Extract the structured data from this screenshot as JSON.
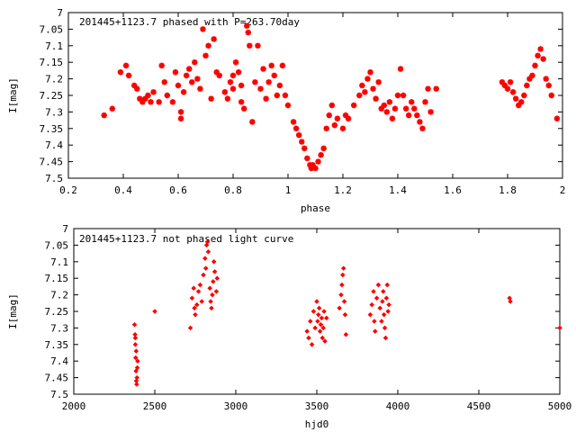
{
  "chart_data": [
    {
      "type": "scatter",
      "title": "201445+1123.7 phased with P=263.70day",
      "xlabel": "phase",
      "ylabel": "I[mag]",
      "xlim": [
        0.2,
        2.0
      ],
      "ylim": [
        7.5,
        7.0
      ],
      "y_inverted": true,
      "grid": false,
      "marker": "star",
      "color": "#ff0000",
      "x_ticks": [
        "0.2",
        "0.4",
        "0.6",
        "0.8",
        "1",
        "1.2",
        "1.4",
        "1.6",
        "1.8",
        "2"
      ],
      "y_ticks": [
        "7",
        "7.05",
        "7.1",
        "7.15",
        "7.2",
        "7.25",
        "7.3",
        "7.35",
        "7.4",
        "7.45",
        "7.5"
      ],
      "points": [
        [
          0.33,
          7.31
        ],
        [
          0.36,
          7.29
        ],
        [
          0.39,
          7.18
        ],
        [
          0.41,
          7.16
        ],
        [
          0.42,
          7.19
        ],
        [
          0.44,
          7.22
        ],
        [
          0.45,
          7.23
        ],
        [
          0.46,
          7.26
        ],
        [
          0.47,
          7.27
        ],
        [
          0.48,
          7.26
        ],
        [
          0.49,
          7.25
        ],
        [
          0.5,
          7.27
        ],
        [
          0.51,
          7.24
        ],
        [
          0.53,
          7.27
        ],
        [
          0.54,
          7.16
        ],
        [
          0.55,
          7.21
        ],
        [
          0.56,
          7.25
        ],
        [
          0.58,
          7.27
        ],
        [
          0.59,
          7.18
        ],
        [
          0.6,
          7.22
        ],
        [
          0.61,
          7.3
        ],
        [
          0.61,
          7.32
        ],
        [
          0.62,
          7.24
        ],
        [
          0.63,
          7.19
        ],
        [
          0.64,
          7.17
        ],
        [
          0.65,
          7.21
        ],
        [
          0.66,
          7.15
        ],
        [
          0.67,
          7.2
        ],
        [
          0.68,
          7.23
        ],
        [
          0.69,
          7.05
        ],
        [
          0.7,
          7.13
        ],
        [
          0.71,
          7.1
        ],
        [
          0.72,
          7.26
        ],
        [
          0.73,
          7.08
        ],
        [
          0.74,
          7.18
        ],
        [
          0.75,
          7.19
        ],
        [
          0.77,
          7.24
        ],
        [
          0.78,
          7.26
        ],
        [
          0.79,
          7.21
        ],
        [
          0.8,
          7.19
        ],
        [
          0.8,
          7.23
        ],
        [
          0.81,
          7.15
        ],
        [
          0.82,
          7.18
        ],
        [
          0.83,
          7.22
        ],
        [
          0.83,
          7.27
        ],
        [
          0.84,
          7.29
        ],
        [
          0.85,
          7.04
        ],
        [
          0.855,
          7.06
        ],
        [
          0.86,
          7.1
        ],
        [
          0.87,
          7.33
        ],
        [
          0.88,
          7.21
        ],
        [
          0.89,
          7.1
        ],
        [
          0.9,
          7.23
        ],
        [
          0.91,
          7.17
        ],
        [
          0.92,
          7.26
        ],
        [
          0.93,
          7.21
        ],
        [
          0.94,
          7.16
        ],
        [
          0.95,
          7.19
        ],
        [
          0.96,
          7.25
        ],
        [
          0.97,
          7.22
        ],
        [
          0.98,
          7.16
        ],
        [
          0.99,
          7.25
        ],
        [
          1.0,
          7.28
        ],
        [
          1.02,
          7.33
        ],
        [
          1.03,
          7.35
        ],
        [
          1.04,
          7.37
        ],
        [
          1.05,
          7.39
        ],
        [
          1.06,
          7.41
        ],
        [
          1.07,
          7.44
        ],
        [
          1.08,
          7.46
        ],
        [
          1.085,
          7.47
        ],
        [
          1.09,
          7.46
        ],
        [
          1.1,
          7.47
        ],
        [
          1.11,
          7.45
        ],
        [
          1.12,
          7.43
        ],
        [
          1.13,
          7.41
        ],
        [
          1.14,
          7.35
        ],
        [
          1.15,
          7.31
        ],
        [
          1.16,
          7.28
        ],
        [
          1.17,
          7.34
        ],
        [
          1.18,
          7.32
        ],
        [
          1.2,
          7.35
        ],
        [
          1.21,
          7.31
        ],
        [
          1.22,
          7.32
        ],
        [
          1.24,
          7.28
        ],
        [
          1.26,
          7.25
        ],
        [
          1.27,
          7.22
        ],
        [
          1.28,
          7.24
        ],
        [
          1.29,
          7.2
        ],
        [
          1.3,
          7.18
        ],
        [
          1.31,
          7.23
        ],
        [
          1.32,
          7.26
        ],
        [
          1.33,
          7.21
        ],
        [
          1.34,
          7.29
        ],
        [
          1.35,
          7.28
        ],
        [
          1.36,
          7.3
        ],
        [
          1.37,
          7.27
        ],
        [
          1.38,
          7.32
        ],
        [
          1.39,
          7.29
        ],
        [
          1.4,
          7.25
        ],
        [
          1.41,
          7.17
        ],
        [
          1.42,
          7.25
        ],
        [
          1.43,
          7.29
        ],
        [
          1.44,
          7.31
        ],
        [
          1.45,
          7.27
        ],
        [
          1.46,
          7.29
        ],
        [
          1.47,
          7.31
        ],
        [
          1.48,
          7.33
        ],
        [
          1.49,
          7.35
        ],
        [
          1.5,
          7.27
        ],
        [
          1.51,
          7.23
        ],
        [
          1.52,
          7.3
        ],
        [
          1.54,
          7.23
        ],
        [
          1.78,
          7.21
        ],
        [
          1.79,
          7.22
        ],
        [
          1.8,
          7.23
        ],
        [
          1.81,
          7.21
        ],
        [
          1.82,
          7.24
        ],
        [
          1.83,
          7.26
        ],
        [
          1.84,
          7.28
        ],
        [
          1.85,
          7.27
        ],
        [
          1.86,
          7.25
        ],
        [
          1.87,
          7.22
        ],
        [
          1.88,
          7.2
        ],
        [
          1.89,
          7.19
        ],
        [
          1.9,
          7.16
        ],
        [
          1.91,
          7.13
        ],
        [
          1.92,
          7.11
        ],
        [
          1.93,
          7.14
        ],
        [
          1.94,
          7.2
        ],
        [
          1.95,
          7.22
        ],
        [
          1.96,
          7.25
        ],
        [
          1.98,
          7.32
        ]
      ]
    },
    {
      "type": "scatter",
      "title": "201445+1123.7 not phased light curve",
      "xlabel": "hjd0",
      "ylabel": "I[mag]",
      "xlim": [
        2000,
        5000
      ],
      "ylim": [
        7.5,
        7.0
      ],
      "y_inverted": true,
      "grid": false,
      "marker": "diamond",
      "color": "#ff0000",
      "x_ticks": [
        "2000",
        "2500",
        "3000",
        "3500",
        "4000",
        "4500",
        "5000"
      ],
      "y_ticks": [
        "7",
        "7.05",
        "7.1",
        "7.15",
        "7.2",
        "7.25",
        "7.3",
        "7.35",
        "7.4",
        "7.45",
        "7.5"
      ],
      "points": [
        [
          2375,
          7.29
        ],
        [
          2378,
          7.32
        ],
        [
          2380,
          7.35
        ],
        [
          2382,
          7.39
        ],
        [
          2384,
          7.43
        ],
        [
          2386,
          7.46
        ],
        [
          2388,
          7.47
        ],
        [
          2390,
          7.45
        ],
        [
          2392,
          7.42
        ],
        [
          2394,
          7.4
        ],
        [
          2380,
          7.33
        ],
        [
          2385,
          7.37
        ],
        [
          2500,
          7.25
        ],
        [
          2720,
          7.3
        ],
        [
          2730,
          7.21
        ],
        [
          2740,
          7.18
        ],
        [
          2745,
          7.24
        ],
        [
          2750,
          7.26
        ],
        [
          2760,
          7.23
        ],
        [
          2770,
          7.19
        ],
        [
          2780,
          7.17
        ],
        [
          2790,
          7.22
        ],
        [
          2800,
          7.14
        ],
        [
          2810,
          7.09
        ],
        [
          2815,
          7.12
        ],
        [
          2820,
          7.05
        ],
        [
          2825,
          7.04
        ],
        [
          2830,
          7.07
        ],
        [
          2840,
          7.18
        ],
        [
          2845,
          7.22
        ],
        [
          2850,
          7.24
        ],
        [
          2855,
          7.2
        ],
        [
          2860,
          7.16
        ],
        [
          2865,
          7.1
        ],
        [
          2870,
          7.13
        ],
        [
          2880,
          7.19
        ],
        [
          2885,
          7.15
        ],
        [
          3440,
          7.31
        ],
        [
          3450,
          7.33
        ],
        [
          3460,
          7.28
        ],
        [
          3470,
          7.35
        ],
        [
          3480,
          7.25
        ],
        [
          3490,
          7.3
        ],
        [
          3500,
          7.22
        ],
        [
          3505,
          7.28
        ],
        [
          3510,
          7.26
        ],
        [
          3515,
          7.24
        ],
        [
          3520,
          7.31
        ],
        [
          3525,
          7.29
        ],
        [
          3530,
          7.27
        ],
        [
          3535,
          7.33
        ],
        [
          3540,
          7.3
        ],
        [
          3545,
          7.25
        ],
        [
          3550,
          7.34
        ],
        [
          3560,
          7.27
        ],
        [
          3640,
          7.24
        ],
        [
          3650,
          7.2
        ],
        [
          3655,
          7.17
        ],
        [
          3660,
          7.14
        ],
        [
          3665,
          7.12
        ],
        [
          3670,
          7.22
        ],
        [
          3675,
          7.26
        ],
        [
          3680,
          7.32
        ],
        [
          3830,
          7.26
        ],
        [
          3840,
          7.23
        ],
        [
          3850,
          7.19
        ],
        [
          3855,
          7.28
        ],
        [
          3860,
          7.31
        ],
        [
          3870,
          7.21
        ],
        [
          3880,
          7.17
        ],
        [
          3890,
          7.24
        ],
        [
          3900,
          7.28
        ],
        [
          3905,
          7.22
        ],
        [
          3910,
          7.19
        ],
        [
          3915,
          7.26
        ],
        [
          3920,
          7.3
        ],
        [
          3925,
          7.33
        ],
        [
          3930,
          7.21
        ],
        [
          3935,
          7.17
        ],
        [
          3940,
          7.25
        ],
        [
          3945,
          7.23
        ],
        [
          4690,
          7.21
        ],
        [
          4695,
          7.22
        ],
        [
          5000,
          7.3
        ]
      ]
    }
  ]
}
